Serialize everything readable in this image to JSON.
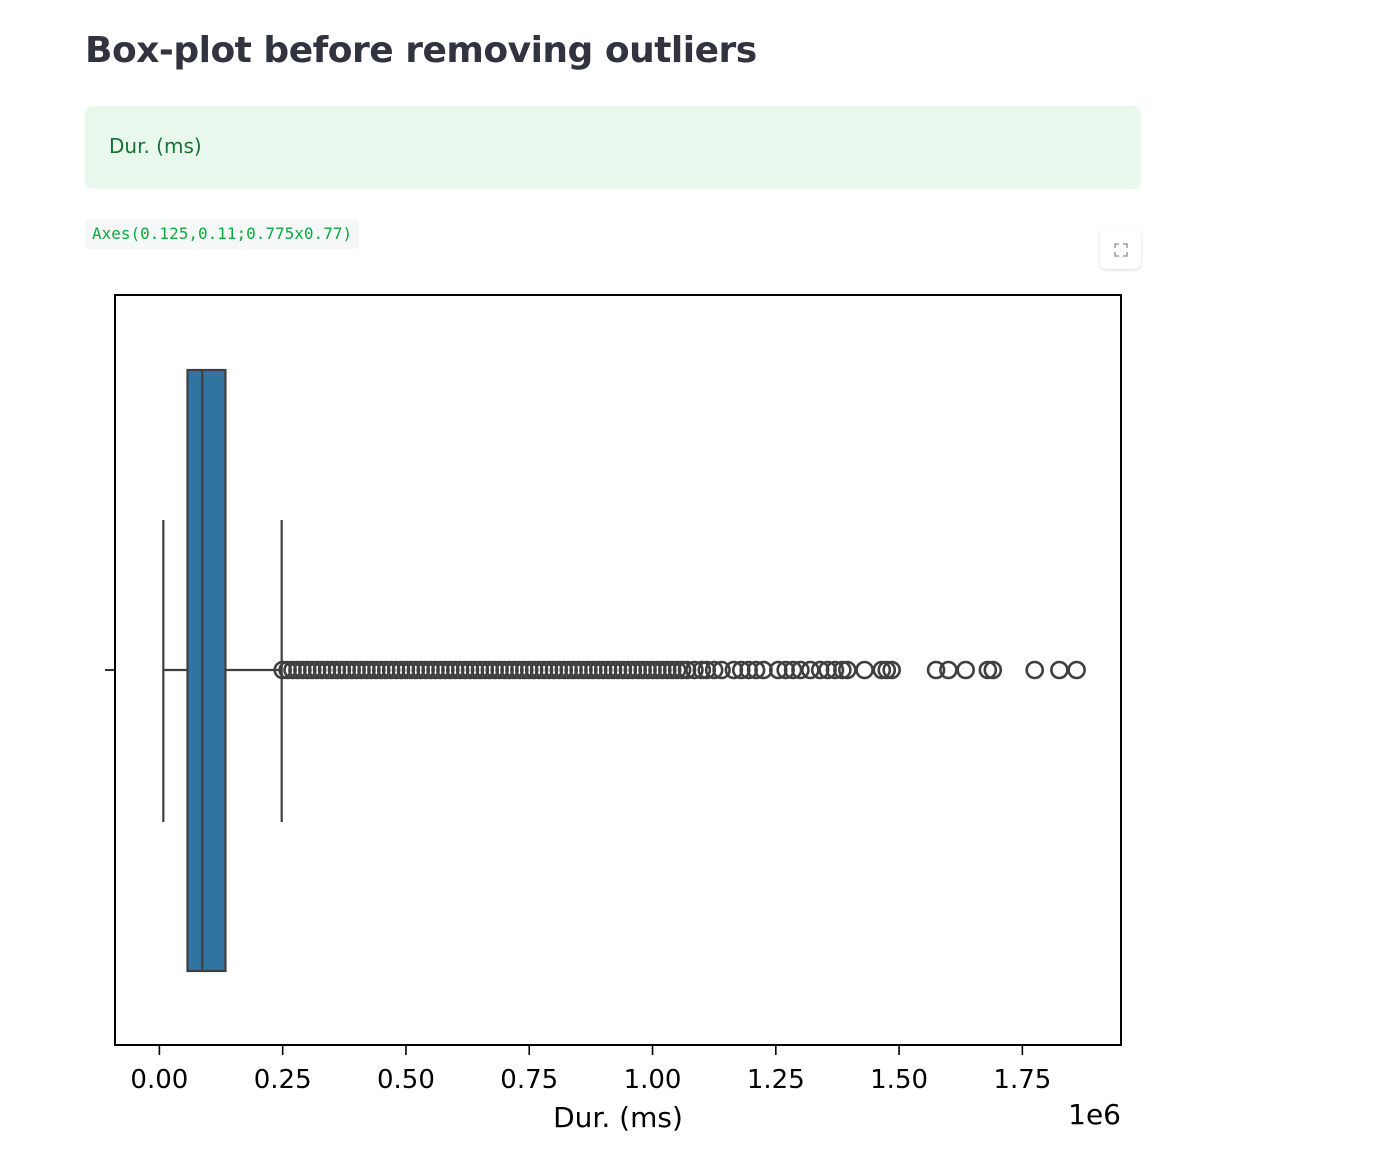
{
  "page": {
    "title": "Box-plot before removing outliers"
  },
  "success_message": {
    "text": "Dur. (ms)"
  },
  "code_output": {
    "text": "Axes(0.125,0.11;0.775x0.77)"
  },
  "toolbar": {
    "fullscreen_icon": "fullscreen-icon"
  },
  "colors": {
    "box_fill": "#3274a1",
    "outline": "#3f3f3f",
    "success_bg": "#e8f8ec",
    "success_text": "#177233",
    "code_text": "#09ab3b"
  },
  "chart_data": {
    "type": "box",
    "orientation": "horizontal",
    "xlabel": "Dur. (ms)",
    "offset_label": "1e6",
    "xlim": [
      -0.09,
      1.95
    ],
    "x_ticks": [
      0.0,
      0.25,
      0.5,
      0.75,
      1.0,
      1.25,
      1.5,
      1.75
    ],
    "x_tick_labels": [
      "0.00",
      "0.25",
      "0.50",
      "0.75",
      "1.00",
      "1.25",
      "1.50",
      "1.75"
    ],
    "box": {
      "whisker_low": 0.008,
      "q1": 0.057,
      "median": 0.087,
      "q3": 0.134,
      "whisker_high": 0.248
    },
    "outliers": [
      0.25,
      0.26,
      0.27,
      0.28,
      0.29,
      0.3,
      0.31,
      0.32,
      0.33,
      0.34,
      0.35,
      0.36,
      0.37,
      0.38,
      0.39,
      0.4,
      0.41,
      0.42,
      0.43,
      0.44,
      0.45,
      0.46,
      0.47,
      0.48,
      0.49,
      0.5,
      0.51,
      0.52,
      0.53,
      0.54,
      0.55,
      0.56,
      0.57,
      0.58,
      0.59,
      0.6,
      0.61,
      0.62,
      0.63,
      0.64,
      0.65,
      0.66,
      0.67,
      0.68,
      0.69,
      0.7,
      0.71,
      0.72,
      0.73,
      0.74,
      0.75,
      0.76,
      0.77,
      0.78,
      0.79,
      0.8,
      0.81,
      0.82,
      0.83,
      0.84,
      0.85,
      0.86,
      0.87,
      0.88,
      0.89,
      0.9,
      0.91,
      0.92,
      0.93,
      0.94,
      0.95,
      0.96,
      0.97,
      0.98,
      0.99,
      1.0,
      1.01,
      1.02,
      1.03,
      1.04,
      1.05,
      1.06,
      1.07,
      1.085,
      1.1,
      1.11,
      1.125,
      1.14,
      1.165,
      1.18,
      1.195,
      1.21,
      1.225,
      1.255,
      1.27,
      1.285,
      1.3,
      1.32,
      1.34,
      1.355,
      1.37,
      1.385,
      1.395,
      1.43,
      1.465,
      1.475,
      1.485,
      1.575,
      1.6,
      1.635,
      1.68,
      1.69,
      1.775,
      1.825,
      1.86
    ]
  }
}
